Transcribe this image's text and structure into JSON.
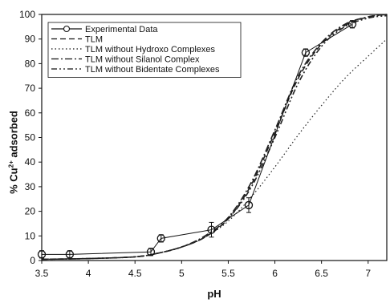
{
  "chart_data": {
    "type": "line",
    "xlabel": "pH",
    "ylabel": {
      "prefix": "% Cu",
      "superscript": "2+",
      "suffix": " adsorbed"
    },
    "xlim": [
      3.5,
      7.2
    ],
    "ylim": [
      0,
      100
    ],
    "x_ticks": [
      "3.5",
      "4",
      "4.5",
      "5",
      "5.5",
      "6",
      "6.5",
      "7"
    ],
    "y_ticks": [
      "0",
      "10",
      "20",
      "30",
      "40",
      "50",
      "60",
      "70",
      "80",
      "90",
      "100"
    ],
    "legend_position": "top-left",
    "series": [
      {
        "name": "Experimental Data",
        "style": "solid-with-circle-markers",
        "points": [
          {
            "x": 3.5,
            "y": 2.5,
            "err": 1.5
          },
          {
            "x": 3.8,
            "y": 2.5,
            "err": 1.5
          },
          {
            "x": 4.67,
            "y": 3.5,
            "err": 1.5
          },
          {
            "x": 4.78,
            "y": 9.0,
            "err": 1.5
          },
          {
            "x": 5.32,
            "y": 12.5,
            "err": 3.0
          },
          {
            "x": 5.72,
            "y": 22.5,
            "err": 3.0
          },
          {
            "x": 6.33,
            "y": 84.5,
            "err": 1.5
          },
          {
            "x": 6.83,
            "y": 96.0,
            "err": 1.5
          }
        ]
      },
      {
        "name": "TLM",
        "style": "dashed",
        "points": [
          [
            3.5,
            0.5
          ],
          [
            4.0,
            0.8
          ],
          [
            4.5,
            1.5
          ],
          [
            4.75,
            3.0
          ],
          [
            5.0,
            5.5
          ],
          [
            5.25,
            9.5
          ],
          [
            5.5,
            17.0
          ],
          [
            5.75,
            31.0
          ],
          [
            6.0,
            52.0
          ],
          [
            6.25,
            74.0
          ],
          [
            6.5,
            88.0
          ],
          [
            6.75,
            95.5
          ],
          [
            7.0,
            99.0
          ],
          [
            7.2,
            100.0
          ]
        ]
      },
      {
        "name": "TLM without Hydroxo Complexes",
        "style": "dotted",
        "points": [
          [
            3.5,
            0.5
          ],
          [
            4.0,
            0.8
          ],
          [
            4.5,
            1.5
          ],
          [
            4.75,
            3.0
          ],
          [
            5.0,
            5.5
          ],
          [
            5.25,
            9.5
          ],
          [
            5.5,
            16.0
          ],
          [
            5.75,
            26.0
          ],
          [
            6.0,
            38.0
          ],
          [
            6.25,
            51.0
          ],
          [
            6.5,
            63.0
          ],
          [
            6.75,
            74.0
          ],
          [
            7.0,
            83.0
          ],
          [
            7.2,
            90.0
          ]
        ]
      },
      {
        "name": "TLM without Silanol Complex",
        "style": "dash-dot",
        "points": [
          [
            3.5,
            0.5
          ],
          [
            4.0,
            0.8
          ],
          [
            4.5,
            1.5
          ],
          [
            4.75,
            3.0
          ],
          [
            5.0,
            5.5
          ],
          [
            5.25,
            10.0
          ],
          [
            5.5,
            17.5
          ],
          [
            5.75,
            32.0
          ],
          [
            6.0,
            53.0
          ],
          [
            6.25,
            75.0
          ],
          [
            6.5,
            88.5
          ],
          [
            6.75,
            96.0
          ],
          [
            7.0,
            99.0
          ],
          [
            7.2,
            100.0
          ]
        ]
      },
      {
        "name": "TLM without Bidentate Complexes",
        "style": "dash-dot-dot",
        "points": [
          [
            3.5,
            0.5
          ],
          [
            4.0,
            0.8
          ],
          [
            4.5,
            1.5
          ],
          [
            4.75,
            3.0
          ],
          [
            5.0,
            5.5
          ],
          [
            5.25,
            9.5
          ],
          [
            5.5,
            17.0
          ],
          [
            5.75,
            30.0
          ],
          [
            6.0,
            50.0
          ],
          [
            6.25,
            72.0
          ],
          [
            6.5,
            87.0
          ],
          [
            6.75,
            95.0
          ],
          [
            7.0,
            98.5
          ],
          [
            7.2,
            99.5
          ]
        ]
      }
    ]
  }
}
